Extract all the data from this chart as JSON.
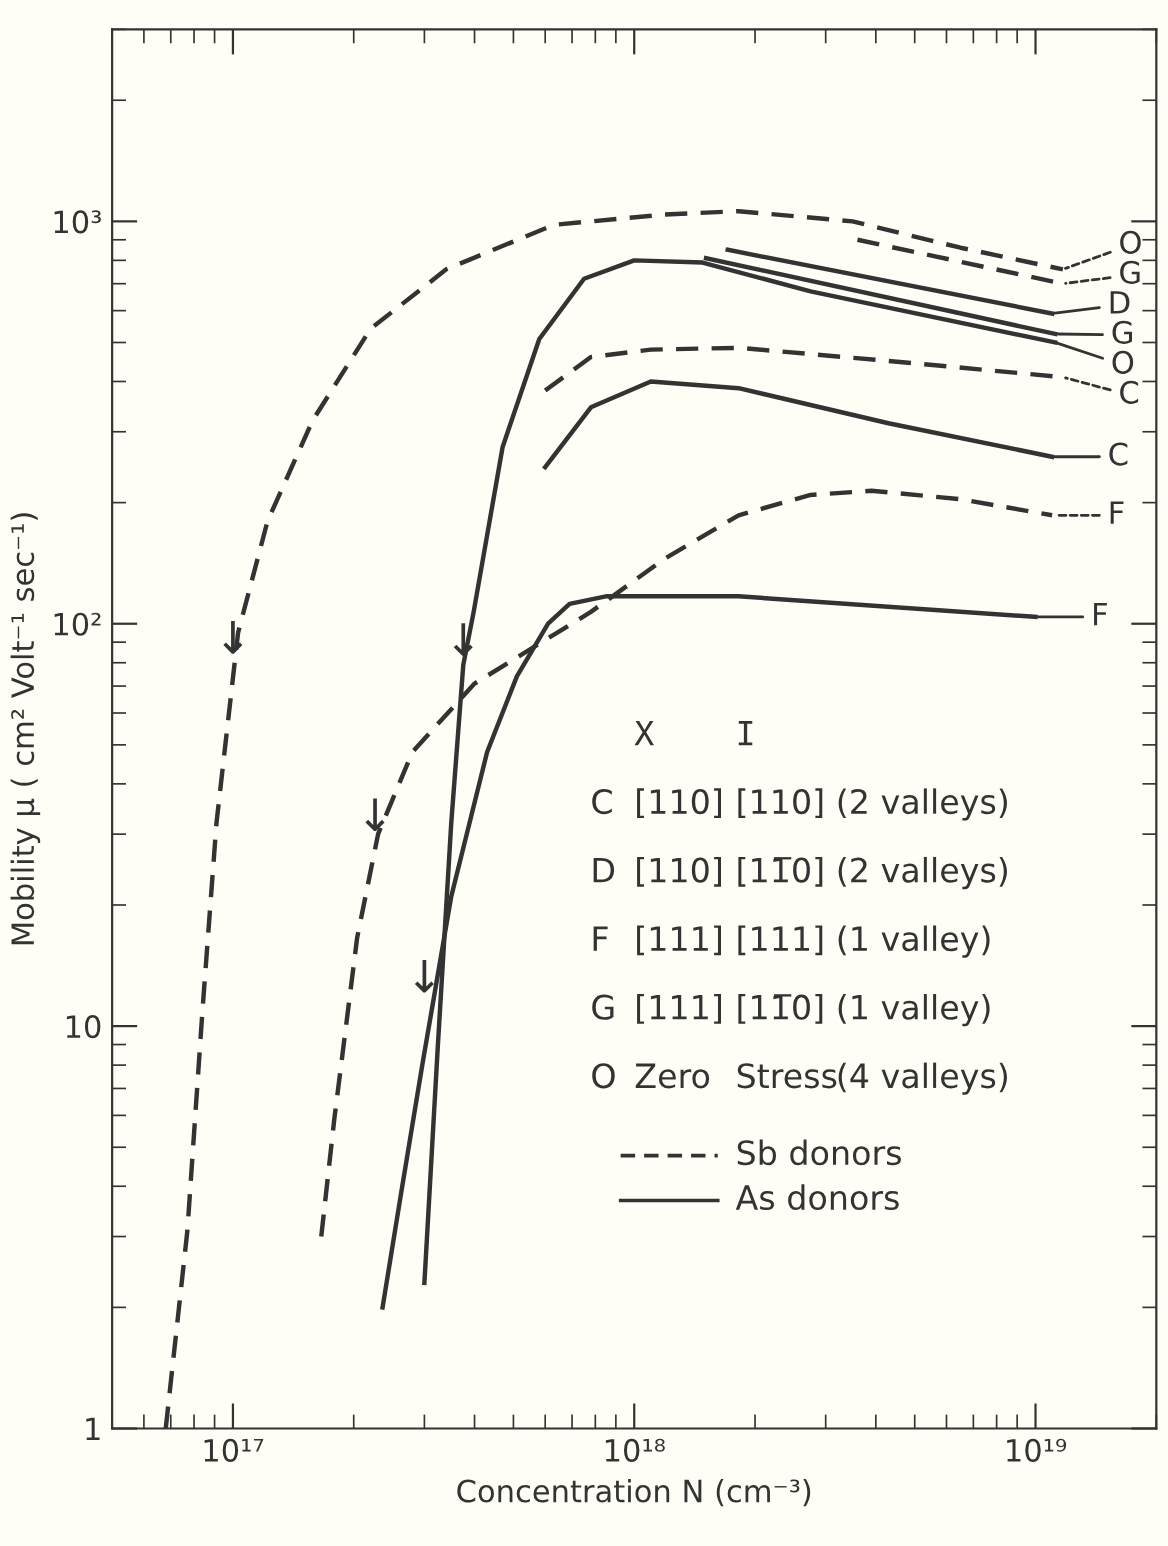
{
  "chart_data": {
    "type": "line",
    "xlabel": "Concentration N (cm⁻³)",
    "ylabel": "Mobility μ ( cm² Volt⁻¹ sec⁻¹)",
    "log": "xy",
    "xlim": [
      5e+16,
      2e+19
    ],
    "ylim": [
      1,
      3000
    ],
    "xticks": [
      {
        "value": 1e+17,
        "label": "10¹⁷"
      },
      {
        "value": 1e+18,
        "label": "10¹⁸"
      },
      {
        "value": 1e+19,
        "label": "10¹⁹"
      }
    ],
    "yticks": [
      {
        "value": 1,
        "label": "1"
      },
      {
        "value": 10,
        "label": "10"
      },
      {
        "value": 100,
        "label": "10²"
      },
      {
        "value": 1000,
        "label": "10³"
      }
    ],
    "grid": false,
    "legend": "right",
    "marker": "none",
    "series": [
      {
        "name": "O",
        "color": "#333333",
        "line_style": "dashed",
        "x": [
          6.8e+16,
          7.7e+16,
          8.4e+16,
          9.1e+16,
          1.03e+17,
          1.22e+17,
          1.58e+17,
          2.2e+17,
          3.4e+17,
          6.3e+17,
          1.19e+18,
          1.82e+18,
          3.5e+18,
          6.5e+18,
          1.17e+19
        ],
        "values": [
          1.0,
          3.1,
          11,
          32,
          95,
          180,
          320,
          540,
          760,
          980,
          1040,
          1060,
          1000,
          860,
          760
        ]
      },
      {
        "name": "G",
        "color": "#333333",
        "line_style": "dashed",
        "x": [
          3.6e+18,
          1.17e+19
        ],
        "values": [
          900,
          700
        ]
      },
      {
        "name": "D",
        "color": "#333333",
        "line_style": "solid",
        "x": [
          1.71e+18,
          1.1e+19
        ],
        "values": [
          850,
          590
        ]
      },
      {
        "name": "G",
        "color": "#333333",
        "line_style": "solid",
        "x": [
          1.51e+18,
          1.12e+19
        ],
        "values": [
          810,
          525
        ]
      },
      {
        "name": "O",
        "color": "#333333",
        "line_style": "solid",
        "x": [
          3e+17,
          3.24e+17,
          3.5e+17,
          3.75e+17,
          3.98e+17,
          4.7e+17,
          5.8e+17,
          7.5e+17,
          1e+18,
          1.48e+18,
          2.75e+18,
          1.12e+19
        ],
        "values": [
          2.3,
          8.9,
          32,
          79,
          107,
          275,
          510,
          720,
          800,
          790,
          670,
          500
        ]
      },
      {
        "name": "C",
        "color": "#333333",
        "line_style": "dashed",
        "x": [
          6e+17,
          7.8e+17,
          1.1e+18,
          1.82e+18,
          4.3e+18,
          1.17e+19
        ],
        "values": [
          380,
          460,
          480,
          485,
          450,
          410
        ]
      },
      {
        "name": "C",
        "color": "#333333",
        "line_style": "solid",
        "x": [
          6e+17,
          7.8e+17,
          1.1e+18,
          1.82e+18,
          4.3e+18,
          1.1e+19
        ],
        "values": [
          245,
          345,
          400,
          385,
          315,
          260
        ]
      },
      {
        "name": "F",
        "color": "#333333",
        "line_style": "dashed",
        "x": [
          1.66e+17,
          1.79e+17,
          2.04e+17,
          2.3e+17,
          2.8e+17,
          4e+17,
          7.8e+17,
          1.19e+18,
          1.82e+18,
          2.75e+18,
          3.9e+18,
          6.5e+18,
          1.1e+19
        ],
        "values": [
          3.0,
          5.9,
          16.6,
          30,
          48,
          71,
          107,
          145,
          186,
          209,
          214,
          204,
          186
        ]
      },
      {
        "name": "F",
        "color": "#333333",
        "line_style": "solid",
        "x": [
          2.36e+17,
          2.62e+17,
          2.97e+17,
          3.5e+17,
          4.3e+17,
          5.1e+17,
          6.1e+17,
          6.9e+17,
          8.5e+17,
          1.82e+18,
          1e+19
        ],
        "values": [
          2.0,
          3.8,
          8.1,
          21,
          48,
          74,
          100,
          112,
          117,
          117,
          104
        ]
      }
    ],
    "annotations": [
      "X I",
      "C [110] [110] (2 valleys)",
      "D [110] [11̅0] (2 valleys)",
      "F [111] [111] (1 valley)",
      "G [111] [11̅0] (1 valley)",
      "O Zero Stress (4 valleys)",
      "Sb donors",
      "As donors",
      {
        "text": "↓",
        "x": 1e+17,
        "y": 80
      },
      {
        "text": "↓",
        "x": 2.26e+17,
        "y": 29
      },
      {
        "text": "↓",
        "x": 3.75e+17,
        "y": 79
      },
      {
        "text": "↓",
        "x": 3e+17,
        "y": 11.5
      }
    ]
  }
}
